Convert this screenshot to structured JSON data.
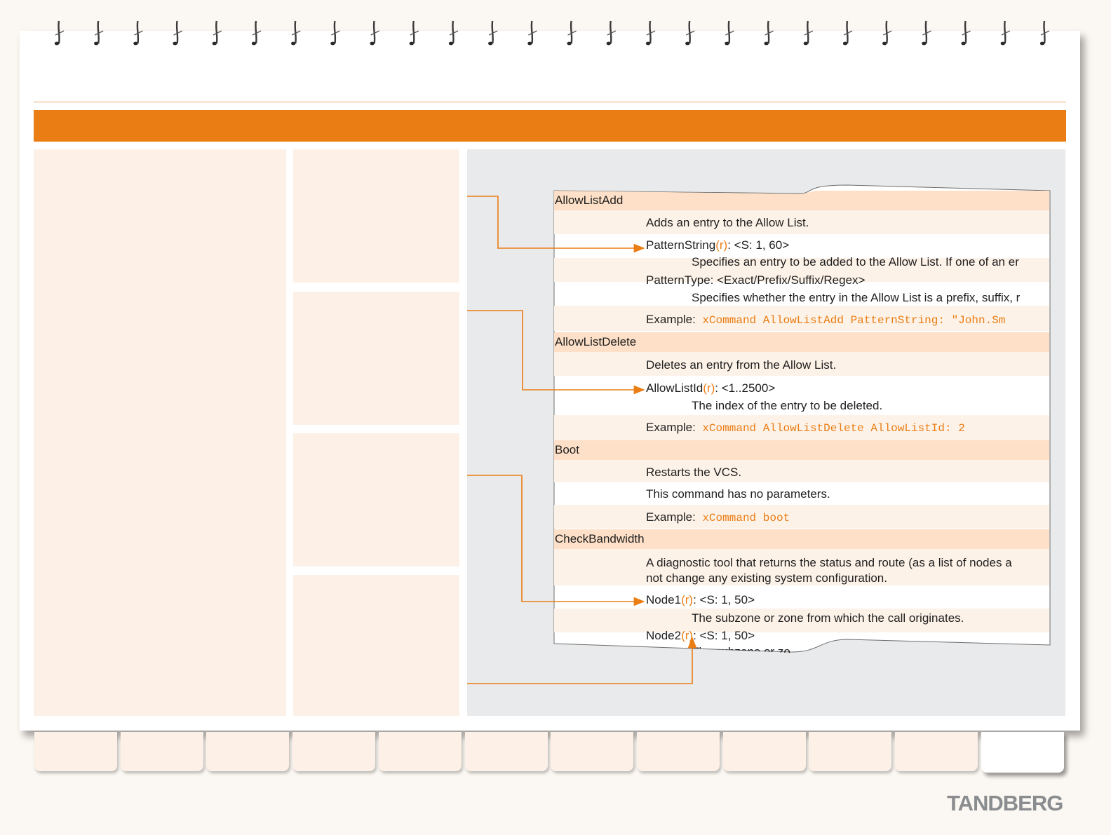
{
  "brand": {
    "logo_text": "TANDBERG"
  },
  "colors": {
    "accent": "#ea7d14",
    "panel": "#fdf1e7",
    "header_row": "#fde0c7",
    "gray_area": "#e9eaeb"
  },
  "doc": {
    "allowlistadd": {
      "name": "AllowListAdd",
      "desc": "Adds an entry to the Allow List.",
      "p1_name": "PatternString",
      "p1_req": "(r)",
      "p1_type": ": <S: 1, 60>",
      "p1_desc": "Specifies an entry to be added to the Allow List. If one of an er",
      "p2_sig": "PatternType: <Exact/Prefix/Suffix/Regex>",
      "p2_desc": "Specifies whether the entry in the Allow List is a prefix, suffix, r",
      "example_label": "Example:",
      "example_code": "xCommand AllowListAdd PatternString: \"John.Sm"
    },
    "allowlistdelete": {
      "name": "AllowListDelete",
      "desc": "Deletes an entry from the Allow List.",
      "p1_name": "AllowListId",
      "p1_req": "(r)",
      "p1_type": ": <1..2500>",
      "p1_desc": "The index of the entry to be deleted.",
      "example_label": "Example:",
      "example_code": "xCommand AllowListDelete AllowListId: 2"
    },
    "boot": {
      "name": "Boot",
      "desc": "Restarts the VCS.",
      "note": "This command has no parameters.",
      "example_label": "Example:",
      "example_code": "xCommand boot"
    },
    "checkbandwidth": {
      "name": "CheckBandwidth",
      "desc_line1": "A diagnostic tool that returns the status and route (as a list of nodes a",
      "desc_line2": "not change any existing system configuration.",
      "p1_name": "Node1",
      "p1_req": "(r)",
      "p1_type": ": <S: 1, 50>",
      "p1_desc": "The subzone or zone from which the call originates.",
      "p2_name": "Node2",
      "p2_req": "(r)",
      "p2_type": ": <S: 1, 50>",
      "p2_desc": "The subzone or zo"
    }
  },
  "tabs": [
    "",
    "",
    "",
    "",
    "",
    "",
    "",
    "",
    "",
    "",
    "",
    ""
  ]
}
